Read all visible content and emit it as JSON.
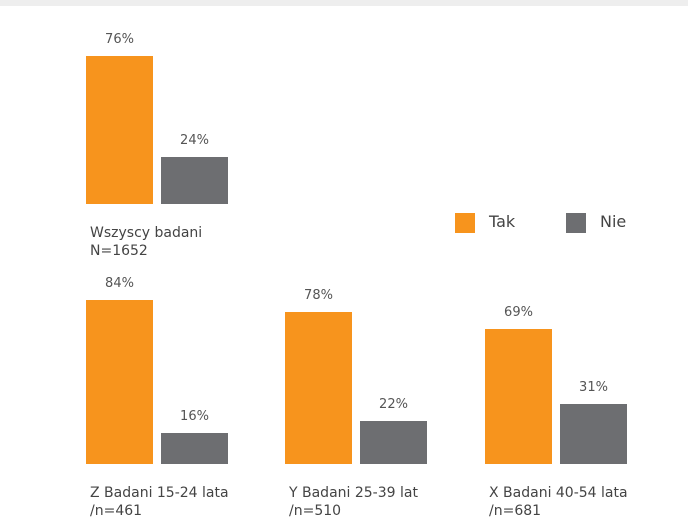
{
  "chart_data": {
    "type": "bar",
    "categories": [
      "Wszyscy badani\nN=1652",
      "Z Badani 15-24 lata\n/n=461",
      "Y Badani 25-39 lat\n/n=510",
      "X Badani 40-54 lata\n/n=681"
    ],
    "series": [
      {
        "name": "Tak",
        "color": "#f7941d",
        "values": [
          76,
          84,
          78,
          69
        ],
        "value_labels": [
          "76%",
          "84%",
          "78%",
          "69%"
        ]
      },
      {
        "name": "Nie",
        "color": "#6d6e71",
        "values": [
          24,
          16,
          22,
          31
        ],
        "value_labels": [
          "24%",
          "16%",
          "22%",
          "31%"
        ]
      }
    ],
    "legend": "right"
  }
}
